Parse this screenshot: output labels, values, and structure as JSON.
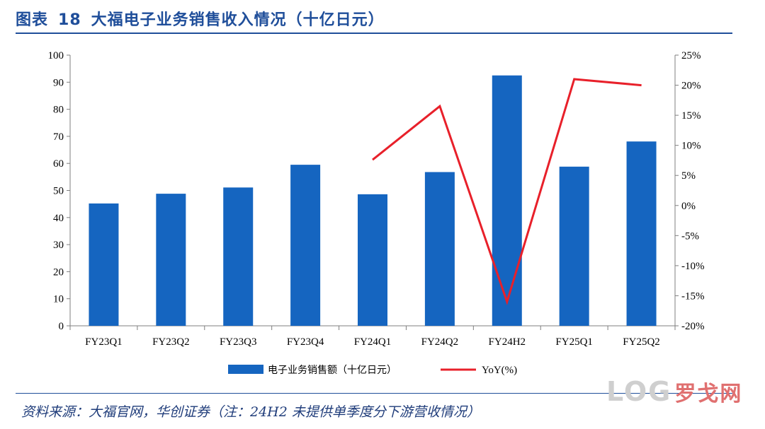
{
  "header": {
    "figure_label": "图表",
    "figure_number": "18",
    "title": "大福电子业务销售收入情况（十亿日元）"
  },
  "footer": {
    "source": "资料来源：大福官网，华创证券（注：24H2 未提供单季度分下游营收情况）"
  },
  "watermark": {
    "text": "LOG",
    "cn_text": "罗戈网"
  },
  "colors": {
    "bar": "#1565C0",
    "line": "#E8202A",
    "brand": "#1F4E9A"
  },
  "chart_data": {
    "type": "bar",
    "categories": [
      "FY23Q1",
      "FY23Q2",
      "FY23Q3",
      "FY23Q4",
      "FY24Q1",
      "FY24Q2",
      "FY24H2",
      "FY25Q1",
      "FY25Q2"
    ],
    "series": [
      {
        "name": "电子业务销售额（十亿日元）",
        "type": "bar",
        "axis": "left",
        "values": [
          45.2,
          48.8,
          51.1,
          59.5,
          48.6,
          56.8,
          92.5,
          58.8,
          68.1
        ]
      },
      {
        "name": "YoY(%)",
        "type": "line",
        "axis": "right",
        "values": [
          null,
          null,
          null,
          null,
          7.6,
          16.5,
          -16.0,
          21.0,
          20.0
        ]
      }
    ],
    "ylim": [
      0,
      100
    ],
    "yticks": [
      "0",
      "10",
      "20",
      "30",
      "40",
      "50",
      "60",
      "70",
      "80",
      "90",
      "100"
    ],
    "y2lim": [
      -20,
      25
    ],
    "y2ticks": [
      "-20%",
      "-15%",
      "-10%",
      "-5%",
      "0%",
      "5%",
      "10%",
      "15%",
      "20%",
      "25%"
    ],
    "legend": "bottom",
    "grid": false
  }
}
